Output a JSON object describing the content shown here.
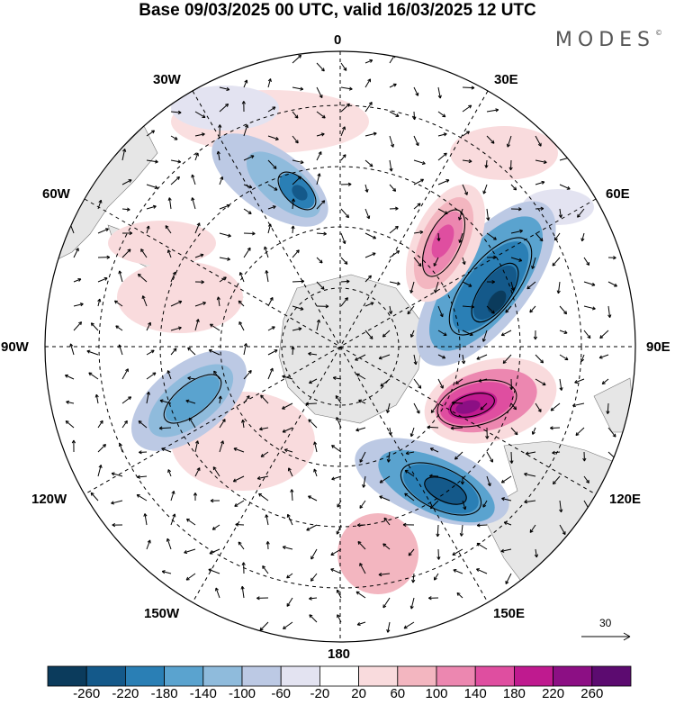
{
  "title": "Base 09/03/2025 00 UTC, valid 16/03/2025 12 UTC",
  "brand": "MODES",
  "brand_mark": "©",
  "longitude_labels": {
    "n": "0",
    "s": "180",
    "w": "90W",
    "e": "90E",
    "w30": "30W",
    "e30": "30E",
    "w60": "60W",
    "e60": "60E",
    "w120": "120W",
    "e120": "120E",
    "w150": "150W",
    "e150": "150E"
  },
  "vector_reference": "30",
  "colorbar": {
    "ticks": [
      "-260",
      "-220",
      "-180",
      "-140",
      "-100",
      "-60",
      "-20",
      "20",
      "60",
      "100",
      "140",
      "180",
      "220",
      "260"
    ],
    "colors": [
      "#0b3b5c",
      "#14598a",
      "#2a7fb5",
      "#5aa3cf",
      "#8fbbdc",
      "#bcc9e4",
      "#e3e3f1",
      "#ffffff",
      "#f9dbdd",
      "#f3b6c0",
      "#ec87b0",
      "#df4ea0",
      "#bf1a8f",
      "#8c0f84",
      "#5c0b70"
    ]
  },
  "anomalies": [
    {
      "name": "trough-1",
      "color": "#2a7fb5",
      "core": "#14598a"
    },
    {
      "name": "trough-2",
      "color": "#2a7fb5",
      "core": "#0b3b5c"
    },
    {
      "name": "trough-3",
      "color": "#5aa3cf",
      "core": "#2a7fb5"
    },
    {
      "name": "trough-4",
      "color": "#2a7fb5",
      "core": "#0b3b5c"
    },
    {
      "name": "ridge-1",
      "color": "#df4ea0",
      "core": "#bf1a8f"
    },
    {
      "name": "ridge-2",
      "color": "#bf1a8f",
      "core": "#8c0f84"
    }
  ]
}
